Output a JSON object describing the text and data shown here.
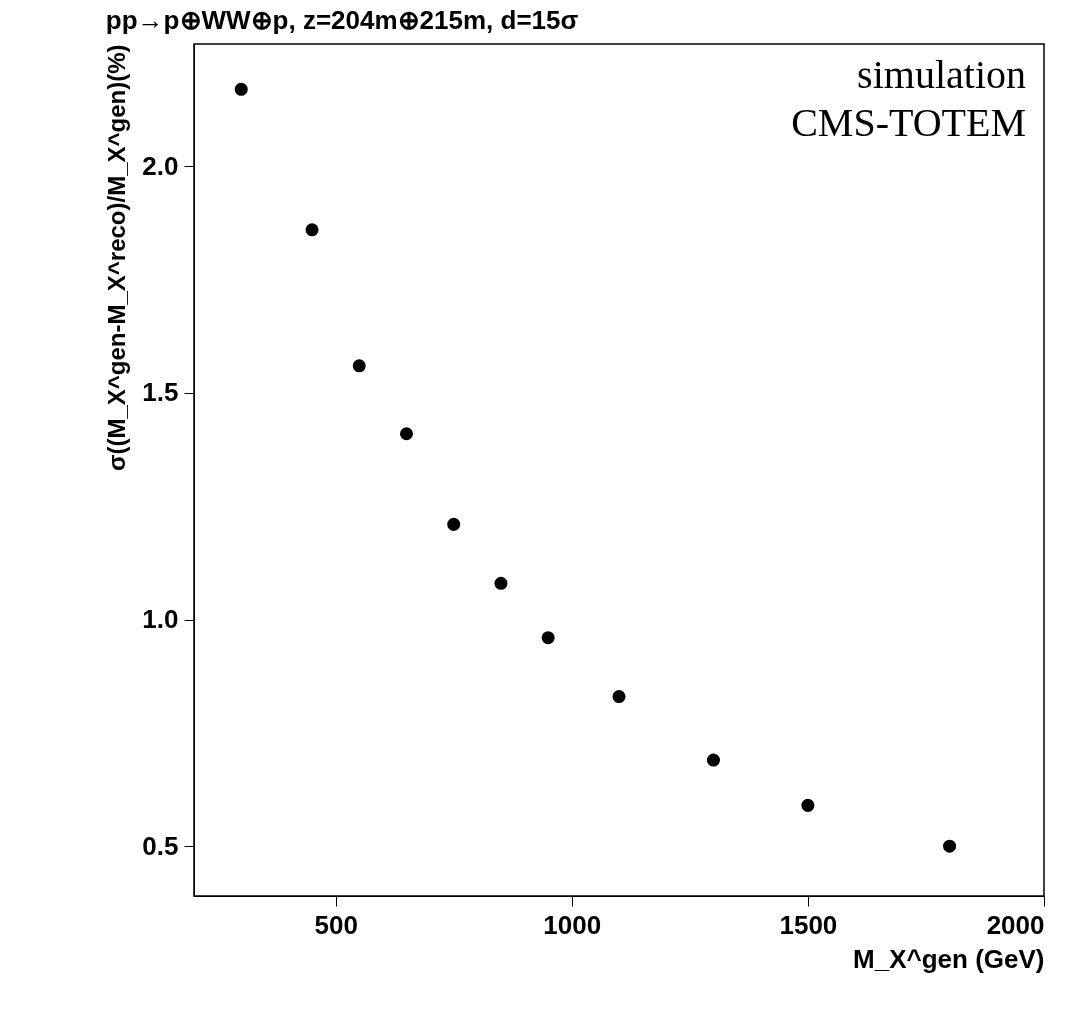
{
  "chart_data": {
    "type": "scatter",
    "title": "pp→p⊕WW⊕p, z=204m⊕215m, d=15σ",
    "xlabel": "M_X^gen (GeV)",
    "ylabel": "σ((M_X^gen-M_X^reco)/M_X^gen)(%)",
    "x": [
      300,
      450,
      550,
      650,
      750,
      850,
      950,
      1100,
      1300,
      1500,
      1800
    ],
    "series": [
      {
        "color": "#000000",
        "values": [
          2.17,
          1.86,
          1.56,
          1.41,
          1.21,
          1.08,
          0.96,
          0.83,
          0.69,
          0.59,
          0.5
        ]
      }
    ],
    "xlim": [
      200,
      2000
    ],
    "xticks": [
      500,
      1000,
      1500,
      2000
    ],
    "ylim": [
      0.39,
      2.27
    ],
    "yticks": [
      0.5,
      {
        "value": 1,
        "label": "1.0"
      },
      1.5,
      {
        "value": 2,
        "label": "2.0"
      }
    ],
    "grid": false,
    "marker": "circle",
    "annotations": [
      "simulation",
      "CMS-TOTEM"
    ]
  }
}
